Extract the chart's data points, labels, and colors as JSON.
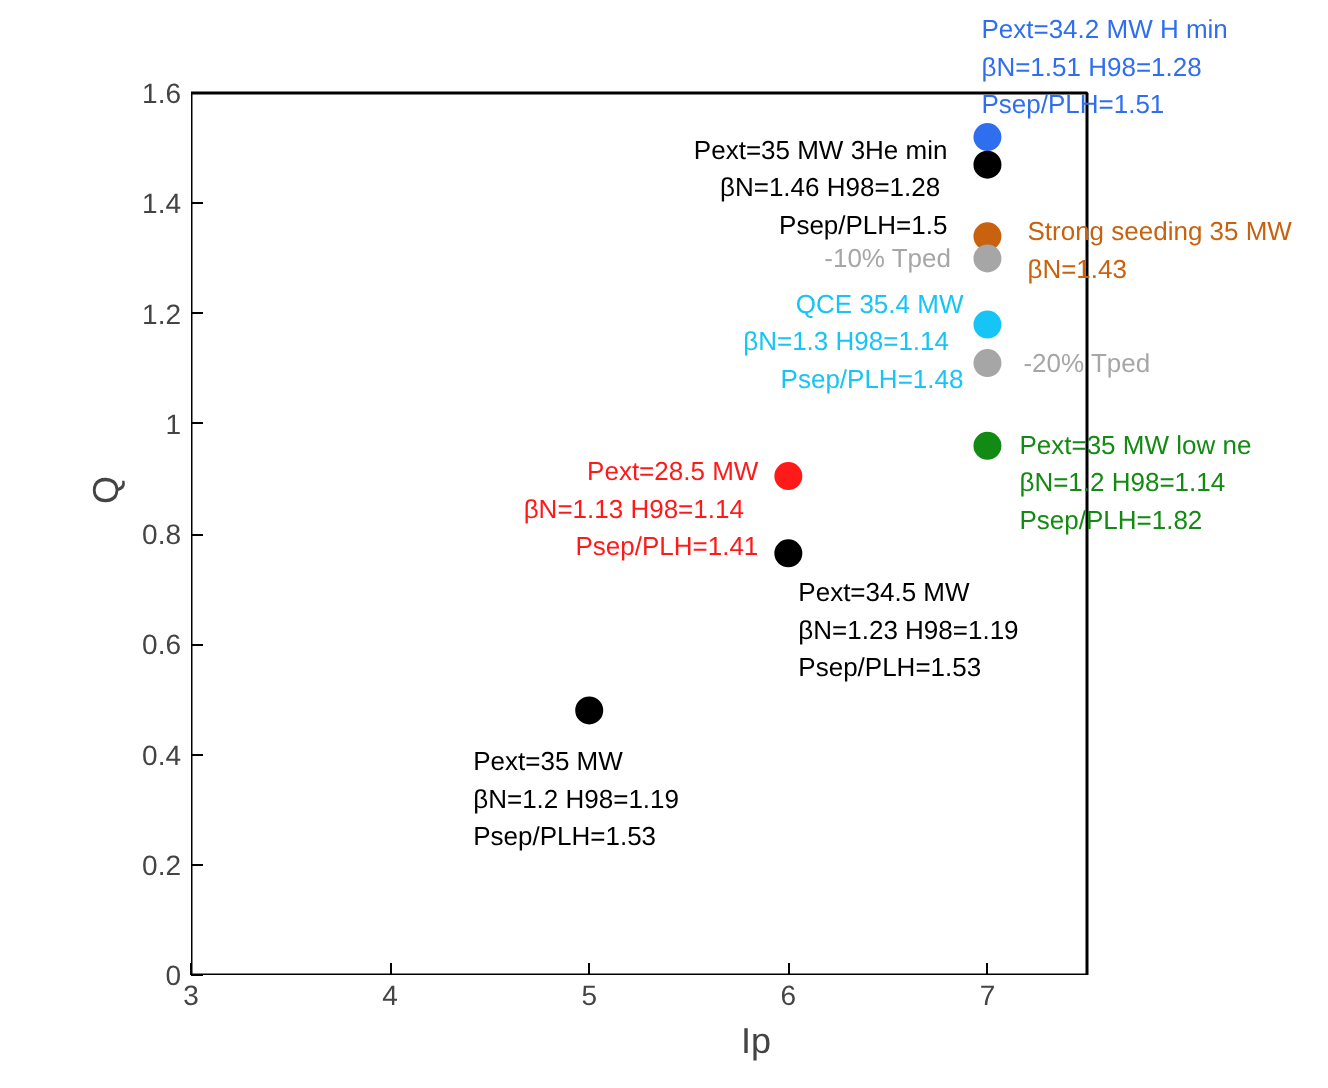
{
  "chart_data": {
    "type": "scatter",
    "xlabel": "Ip",
    "ylabel": "Q",
    "xlim": [
      3,
      7.5
    ],
    "ylim": [
      0,
      1.6
    ],
    "xticks": [
      3,
      4,
      5,
      6,
      7
    ],
    "yticks": [
      0,
      0.2,
      0.4,
      0.6,
      0.8,
      1,
      1.2,
      1.4,
      1.6
    ],
    "grid": false,
    "legend": false,
    "marker": "circle",
    "series": [
      {
        "name": "Pext=34.2 MW H min\nβN=1.51  H98=1.28\nPsep/PLH=1.51",
        "color": "#2f6fef",
        "x": [
          7
        ],
        "values": [
          1.52
        ]
      },
      {
        "name": "Pext=35 MW 3He min\nβN=1.46  H98=1.28\nPsep/PLH=1.5",
        "color": "#000000",
        "x": [
          7
        ],
        "values": [
          1.47
        ]
      },
      {
        "name": "Strong seeding 35 MW\nβN=1.43",
        "color": "#c8620e",
        "x": [
          7
        ],
        "values": [
          1.34
        ]
      },
      {
        "name": "-10% Tped",
        "color": "#a6a6a6",
        "x": [
          7
        ],
        "values": [
          1.3
        ]
      },
      {
        "name": "QCE 35.4 MW\nβN=1.3   H98=1.14\nPsep/PLH=1.48",
        "color": "#16c4f5",
        "x": [
          7
        ],
        "values": [
          1.18
        ]
      },
      {
        "name": "-20% Tped",
        "color": "#a6a6a6",
        "x": [
          7
        ],
        "values": [
          1.11
        ]
      },
      {
        "name": "Pext=35 MW low ne\nβN=1.2   H98=1.14\nPsep/PLH=1.82",
        "color": "#138a13",
        "x": [
          7
        ],
        "values": [
          0.96
        ]
      },
      {
        "name": "Pext=28.5 MW\nβN=1.13   H98=1.14\nPsep/PLH=1.41",
        "color": "#ff1a1a",
        "x": [
          6
        ],
        "values": [
          0.905
        ]
      },
      {
        "name": "Pext=34.5 MW\nβN=1.23   H98=1.19\nPsep/PLH=1.53",
        "color": "#000000",
        "x": [
          6
        ],
        "values": [
          0.765
        ]
      },
      {
        "name": "Pext=35 MW\nβN=1.2   H98=1.19\nPsep/PLH=1.53",
        "color": "#000000",
        "x": [
          5
        ],
        "values": [
          0.48
        ]
      }
    ]
  }
}
